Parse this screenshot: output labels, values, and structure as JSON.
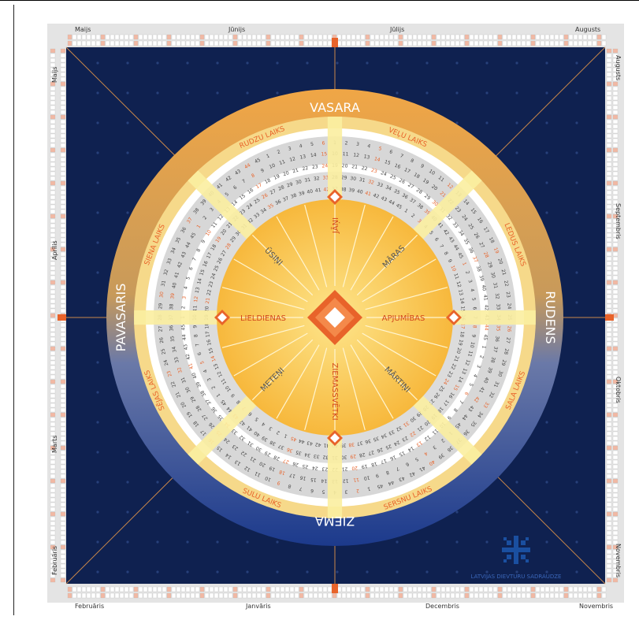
{
  "months": {
    "top": [
      "Maijs",
      "Jūnijs",
      "Jūlijs",
      "Augusts"
    ],
    "bottom": [
      "Februāris",
      "Janvāris",
      "Decembris",
      "Novembris"
    ],
    "left": [
      "Maijs",
      "Aprīlis",
      "Marts",
      "Februāris"
    ],
    "right": [
      "Augusts",
      "Septembris",
      "Oktobris",
      "Novembris"
    ]
  },
  "seasons": {
    "top": "VASARA",
    "right": "RUDENS",
    "bottom": "ZIEMA",
    "left": "PAVASARIS"
  },
  "times": [
    "SĒJAS LAIKS",
    "SIENA LAIKS",
    "RUDZU LAIKS",
    "VEĻU LAIKS",
    "LEDUS LAIKS",
    "SALA LAIKS",
    "SERSNU LAIKS",
    "SULU LAIKS"
  ],
  "festivals": {
    "top": "JĀŅI",
    "right": "APJUMĪBAS",
    "bottom": "ZIEMASSVĒTKI",
    "left": "LIELDIENAS",
    "top_left": "ŪSIŅI",
    "top_right": "MĀRAS",
    "bottom_right": "MĀRTIŅI",
    "bottom_left": "METEŅI"
  },
  "organization": "LATVIJAS DIEVTURU SADRAUDZE",
  "colors": {
    "navy": "#0f2150",
    "gold": "#f5b43c",
    "orange": "#e8632a",
    "cream": "#fdf3c8",
    "gray": "#d9d9d9"
  }
}
